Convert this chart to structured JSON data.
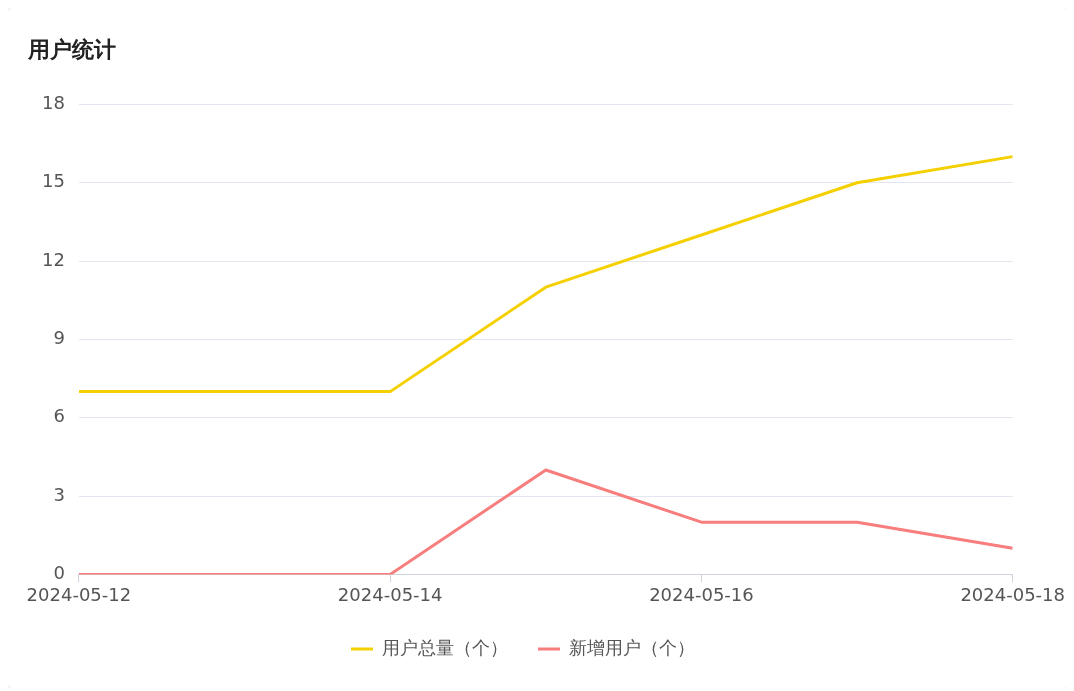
{
  "chart_data": {
    "type": "line",
    "title": "用户统计",
    "x": [
      "2024-05-12",
      "2024-05-13",
      "2024-05-14",
      "2024-05-15",
      "2024-05-16",
      "2024-05-17",
      "2024-05-18"
    ],
    "series": [
      {
        "name": "用户总量（个）",
        "color": "#f5d000",
        "values": [
          7,
          7,
          7,
          11,
          13,
          15,
          16
        ]
      },
      {
        "name": "新增用户（个）",
        "color": "#f87d7d",
        "values": [
          0,
          0,
          0,
          4,
          2,
          2,
          1
        ]
      }
    ],
    "xlim": [
      "2024-05-12",
      "2024-05-18"
    ],
    "xticks": [
      "2024-05-12",
      "2024-05-14",
      "2024-05-16",
      "2024-05-18"
    ],
    "ylim": [
      0,
      18
    ],
    "yticks": [
      0,
      3,
      6,
      9,
      12,
      15,
      18
    ],
    "grid": "y",
    "legend": "bottom",
    "marker": "none",
    "line_style": "solid"
  }
}
